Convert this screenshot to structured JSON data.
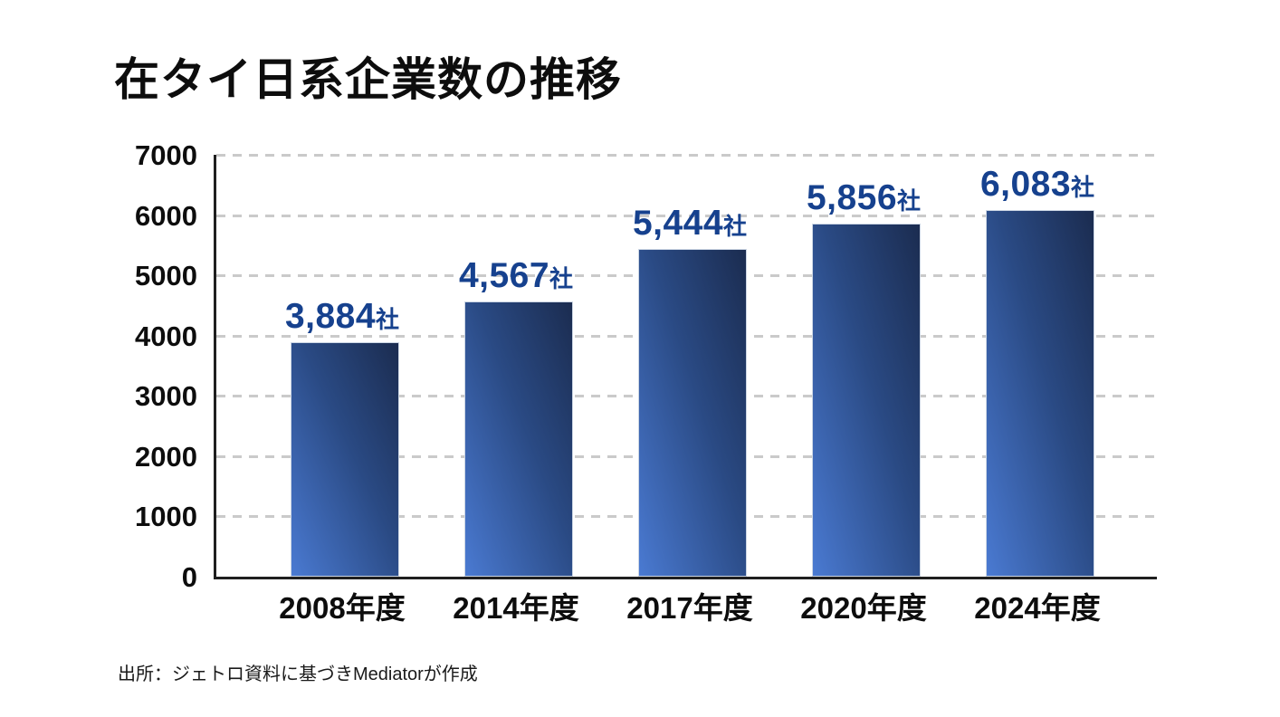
{
  "title": "在タイ日系企業数の推移",
  "source": "出所：ジェトロ資料に基づきMediatorが作成",
  "colors": {
    "value_label_blue": "#16418e",
    "bar_gradient_light": "#4a7ad2",
    "bar_gradient_dark": "#1b2c50",
    "gridline_gray": "#cacaca",
    "axis_black": "#1f1f1f",
    "text_black": "#0d0d0d"
  },
  "chart_data": {
    "type": "bar",
    "title": "在タイ日系企業数の推移",
    "categories": [
      "2008年度",
      "2014年度",
      "2017年度",
      "2020年度",
      "2024年度"
    ],
    "values": [
      3884,
      4567,
      5444,
      5856,
      6083
    ],
    "value_labels": [
      "3,884",
      "4,567",
      "5,444",
      "5,856",
      "6,083"
    ],
    "unit_suffix": "社",
    "xlabel": "",
    "ylabel": "",
    "ylim": [
      0,
      7000
    ],
    "yticks": [
      0,
      1000,
      2000,
      3000,
      4000,
      5000,
      6000,
      7000
    ],
    "grid": "horizontal-dashed",
    "legend": "none",
    "source_note": "出所：ジェトロ資料に基づきMediatorが作成"
  }
}
